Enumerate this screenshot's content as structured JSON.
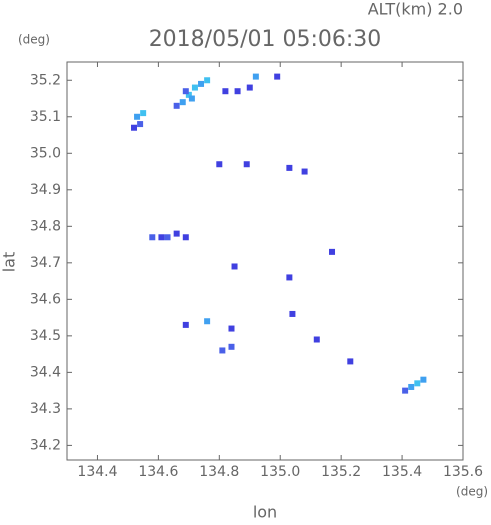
{
  "chart_data": {
    "type": "scatter",
    "title": "2018/05/01 05:06:30",
    "subtitle": "ALT(km) 2.0",
    "xlabel": "lon",
    "ylabel": "lat",
    "xunit": "(deg)",
    "yunit": "(deg)",
    "x": [
      134.53,
      134.54,
      134.52,
      134.55,
      134.66,
      134.68,
      134.7,
      134.72,
      134.74,
      134.76,
      134.69,
      134.71,
      134.82,
      134.86,
      134.92,
      134.99,
      134.9,
      134.8,
      134.89,
      135.03,
      135.08,
      134.58,
      134.61,
      134.63,
      134.66,
      134.69,
      134.85,
      135.17,
      135.03,
      134.69,
      134.76,
      134.84,
      134.81,
      134.84,
      135.04,
      135.12,
      135.23,
      135.41,
      135.43,
      135.45,
      135.47
    ],
    "y": [
      35.1,
      35.08,
      35.07,
      35.11,
      35.13,
      35.14,
      35.16,
      35.18,
      35.19,
      35.2,
      35.17,
      35.15,
      35.17,
      35.17,
      35.21,
      35.21,
      35.18,
      34.97,
      34.97,
      34.96,
      34.95,
      34.77,
      34.77,
      34.77,
      34.78,
      34.77,
      34.69,
      34.73,
      34.66,
      34.53,
      34.54,
      34.52,
      34.46,
      34.47,
      34.56,
      34.49,
      34.43,
      34.35,
      34.36,
      34.37,
      34.38
    ],
    "colors": [
      "#3fa0f0",
      "#4a60e8",
      "#4040e0",
      "#40c0f0",
      "#4a60e8",
      "#3fa0f0",
      "#40c0f0",
      "#40c0f0",
      "#3fa0f0",
      "#40c0f0",
      "#4a60e8",
      "#3fa0f0",
      "#4040e0",
      "#4040e0",
      "#40a0f0",
      "#4040e0",
      "#4040e0",
      "#4040e0",
      "#4040e0",
      "#4040e0",
      "#4040e0",
      "#4a60e8",
      "#4040e0",
      "#4a60e8",
      "#4040e0",
      "#4040e0",
      "#4040e0",
      "#4040e0",
      "#4040e0",
      "#4040e0",
      "#40a0f0",
      "#4040e0",
      "#4a60e8",
      "#4a60e8",
      "#4040e0",
      "#4040e0",
      "#4040e0",
      "#4a60e8",
      "#3fa0f0",
      "#40c0f0",
      "#3fa0f0"
    ],
    "xlim": [
      134.3,
      135.6
    ],
    "ylim": [
      34.16,
      35.25
    ],
    "xticks": [
      134.4,
      134.6,
      134.8,
      {
        "value": 135,
        "label": "135.0"
      },
      135.2,
      135.4,
      135.6
    ],
    "yticks": [
      34.2,
      34.3,
      34.4,
      34.5,
      34.6,
      34.7,
      34.8,
      34.9,
      {
        "value": 35,
        "label": "35.0"
      },
      35.1,
      35.2
    ]
  }
}
